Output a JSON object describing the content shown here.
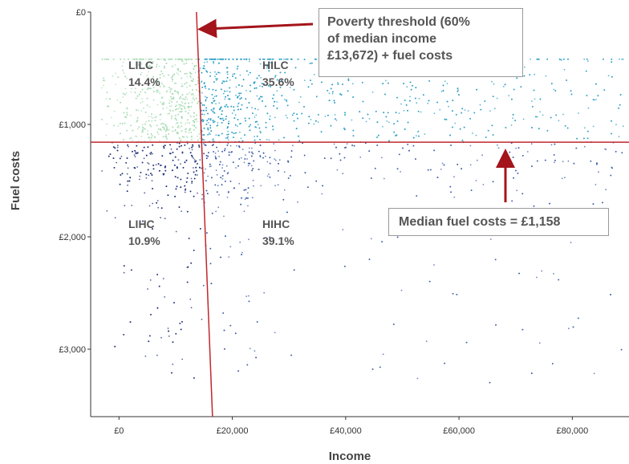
{
  "chart_data": {
    "type": "scatter",
    "xlabel": "Income",
    "ylabel": "Fuel costs",
    "x_ticks": [
      "£0",
      "£20,000",
      "£40,000",
      "£60,000",
      "£80,000"
    ],
    "y_ticks": [
      "£0",
      "£1,000",
      "£2,000",
      "£3,000"
    ],
    "xlim": [
      -5000,
      90000
    ],
    "ylim": [
      3600,
      0
    ],
    "y_inverted": true,
    "thresholds": {
      "median_fuel_costs": 1158,
      "poverty_line_points": [
        [
          13672,
          0
        ],
        [
          16500,
          3600
        ]
      ]
    },
    "quadrants": [
      {
        "name": "LILC",
        "share": "14.4%",
        "color": "#a8dcb4"
      },
      {
        "name": "HILC",
        "share": "35.6%",
        "color": "#2a9ec4"
      },
      {
        "name": "LIHC",
        "share": "10.9%",
        "color": "#1e2f78"
      },
      {
        "name": "HIHC",
        "share": "39.1%",
        "color": "#3d5ea8"
      }
    ],
    "line_color": "#c0272d",
    "arrow_color": "#a3141b",
    "grid": false
  },
  "annotations": {
    "poverty_threshold_lines": [
      "Poverty threshold (60%",
      "of median income",
      "£13,672) + fuel costs"
    ],
    "median_fuel_costs": "Median fuel costs = £1,158"
  }
}
